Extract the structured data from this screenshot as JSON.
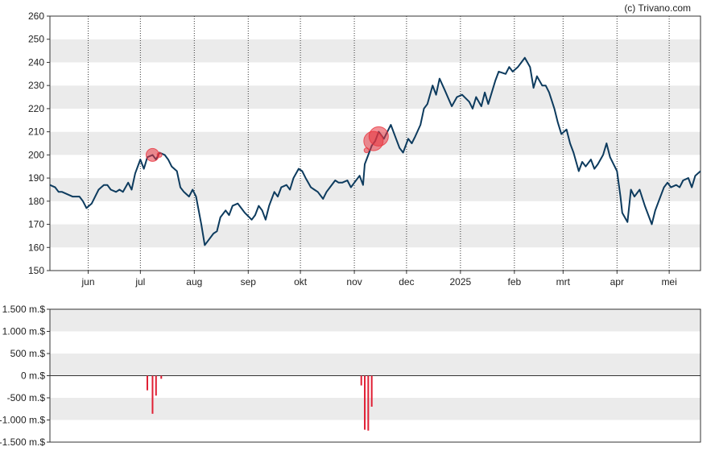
{
  "credit": "(c) Trivano.com",
  "chart_data": [
    {
      "type": "line",
      "name": "price",
      "ylim": [
        150,
        260
      ],
      "y_ticks": [
        150,
        160,
        170,
        180,
        190,
        200,
        210,
        220,
        230,
        240,
        250,
        260
      ],
      "y_tick_labels": [
        "150",
        "160",
        "170",
        "180",
        "190",
        "200",
        "210",
        "220",
        "230",
        "240",
        "250",
        "260"
      ],
      "x_domain": [
        "2024-05-10",
        "2025-05-19"
      ],
      "month_labels": [
        {
          "label": "jun",
          "date": "2024-06-01"
        },
        {
          "label": "jul",
          "date": "2024-07-01"
        },
        {
          "label": "aug",
          "date": "2024-08-01"
        },
        {
          "label": "sep",
          "date": "2024-09-01"
        },
        {
          "label": "okt",
          "date": "2024-10-01"
        },
        {
          "label": "nov",
          "date": "2024-11-01"
        },
        {
          "label": "dec",
          "date": "2024-12-01"
        },
        {
          "label": "2025",
          "date": "2025-01-01"
        },
        {
          "label": "feb",
          "date": "2025-02-01"
        },
        {
          "label": "mrt",
          "date": "2025-03-01"
        },
        {
          "label": "apr",
          "date": "2025-04-01"
        },
        {
          "label": "mei",
          "date": "2025-05-01"
        }
      ],
      "grid_dotted_vertical": true,
      "band_colors": [
        "#ebebeb",
        "#ffffff"
      ],
      "line_color": "#0d3b5e",
      "series": [
        {
          "values": [
            [
              "2024-05-10",
              187
            ],
            [
              "2024-05-13",
              186
            ],
            [
              "2024-05-15",
              184
            ],
            [
              "2024-05-17",
              184
            ],
            [
              "2024-05-20",
              183
            ],
            [
              "2024-05-23",
              182
            ],
            [
              "2024-05-27",
              182
            ],
            [
              "2024-05-29",
              180
            ],
            [
              "2024-05-31",
              177
            ],
            [
              "2024-06-03",
              179
            ],
            [
              "2024-06-05",
              182
            ],
            [
              "2024-06-07",
              185
            ],
            [
              "2024-06-10",
              187
            ],
            [
              "2024-06-12",
              187
            ],
            [
              "2024-06-14",
              185
            ],
            [
              "2024-06-17",
              184
            ],
            [
              "2024-06-19",
              185
            ],
            [
              "2024-06-21",
              184
            ],
            [
              "2024-06-24",
              188
            ],
            [
              "2024-06-26",
              185
            ],
            [
              "2024-06-28",
              192
            ],
            [
              "2024-07-01",
              198
            ],
            [
              "2024-07-03",
              194
            ],
            [
              "2024-07-05",
              199
            ],
            [
              "2024-07-08",
              200
            ],
            [
              "2024-07-10",
              198
            ],
            [
              "2024-07-12",
              201
            ],
            [
              "2024-07-15",
              200
            ],
            [
              "2024-07-17",
              198
            ],
            [
              "2024-07-19",
              195
            ],
            [
              "2024-07-22",
              193
            ],
            [
              "2024-07-24",
              186
            ],
            [
              "2024-07-26",
              184
            ],
            [
              "2024-07-29",
              182
            ],
            [
              "2024-07-31",
              185
            ],
            [
              "2024-08-02",
              182
            ],
            [
              "2024-08-05",
              170
            ],
            [
              "2024-08-07",
              161
            ],
            [
              "2024-08-09",
              163
            ],
            [
              "2024-08-12",
              166
            ],
            [
              "2024-08-14",
              167
            ],
            [
              "2024-08-16",
              173
            ],
            [
              "2024-08-19",
              176
            ],
            [
              "2024-08-21",
              174
            ],
            [
              "2024-08-23",
              178
            ],
            [
              "2024-08-26",
              179
            ],
            [
              "2024-08-28",
              177
            ],
            [
              "2024-08-30",
              175
            ],
            [
              "2024-09-03",
              172
            ],
            [
              "2024-09-05",
              174
            ],
            [
              "2024-09-07",
              178
            ],
            [
              "2024-09-09",
              176
            ],
            [
              "2024-09-11",
              172
            ],
            [
              "2024-09-13",
              178
            ],
            [
              "2024-09-16",
              184
            ],
            [
              "2024-09-18",
              182
            ],
            [
              "2024-09-20",
              186
            ],
            [
              "2024-09-23",
              187
            ],
            [
              "2024-09-25",
              185
            ],
            [
              "2024-09-27",
              190
            ],
            [
              "2024-09-30",
              194
            ],
            [
              "2024-10-02",
              193
            ],
            [
              "2024-10-04",
              190
            ],
            [
              "2024-10-07",
              186
            ],
            [
              "2024-10-09",
              185
            ],
            [
              "2024-10-11",
              184
            ],
            [
              "2024-10-14",
              181
            ],
            [
              "2024-10-16",
              184
            ],
            [
              "2024-10-18",
              186
            ],
            [
              "2024-10-21",
              189
            ],
            [
              "2024-10-23",
              188
            ],
            [
              "2024-10-25",
              188
            ],
            [
              "2024-10-28",
              189
            ],
            [
              "2024-10-30",
              186
            ],
            [
              "2024-11-01",
              188
            ],
            [
              "2024-11-04",
              191
            ],
            [
              "2024-11-06",
              187
            ],
            [
              "2024-11-07",
              196
            ],
            [
              "2024-11-08",
              198
            ],
            [
              "2024-11-11",
              204
            ],
            [
              "2024-11-13",
              206
            ],
            [
              "2024-11-15",
              210
            ],
            [
              "2024-11-18",
              207
            ],
            [
              "2024-11-20",
              210
            ],
            [
              "2024-11-22",
              213
            ],
            [
              "2024-11-25",
              207
            ],
            [
              "2024-11-27",
              203
            ],
            [
              "2024-11-29",
              201
            ],
            [
              "2024-12-02",
              207
            ],
            [
              "2024-12-04",
              205
            ],
            [
              "2024-12-06",
              208
            ],
            [
              "2024-12-09",
              213
            ],
            [
              "2024-12-11",
              220
            ],
            [
              "2024-12-13",
              222
            ],
            [
              "2024-12-16",
              230
            ],
            [
              "2024-12-18",
              226
            ],
            [
              "2024-12-20",
              233
            ],
            [
              "2024-12-23",
              228
            ],
            [
              "2024-12-27",
              221
            ],
            [
              "2024-12-30",
              225
            ],
            [
              "2025-01-02",
              226
            ],
            [
              "2025-01-06",
              223
            ],
            [
              "2025-01-08",
              220
            ],
            [
              "2025-01-10",
              225
            ],
            [
              "2025-01-13",
              221
            ],
            [
              "2025-01-15",
              227
            ],
            [
              "2025-01-17",
              222
            ],
            [
              "2025-01-21",
              232
            ],
            [
              "2025-01-23",
              236
            ],
            [
              "2025-01-27",
              235
            ],
            [
              "2025-01-29",
              238
            ],
            [
              "2025-01-31",
              236
            ],
            [
              "2025-02-03",
              238
            ],
            [
              "2025-02-05",
              240
            ],
            [
              "2025-02-07",
              242
            ],
            [
              "2025-02-10",
              238
            ],
            [
              "2025-02-12",
              229
            ],
            [
              "2025-02-14",
              234
            ],
            [
              "2025-02-17",
              230
            ],
            [
              "2025-02-19",
              230
            ],
            [
              "2025-02-21",
              227
            ],
            [
              "2025-02-24",
              220
            ],
            [
              "2025-02-26",
              214
            ],
            [
              "2025-02-28",
              209
            ],
            [
              "2025-03-03",
              211
            ],
            [
              "2025-03-05",
              205
            ],
            [
              "2025-03-07",
              201
            ],
            [
              "2025-03-10",
              193
            ],
            [
              "2025-03-12",
              197
            ],
            [
              "2025-03-14",
              195
            ],
            [
              "2025-03-17",
              198
            ],
            [
              "2025-03-19",
              194
            ],
            [
              "2025-03-21",
              196
            ],
            [
              "2025-03-24",
              200
            ],
            [
              "2025-03-26",
              205
            ],
            [
              "2025-03-28",
              199
            ],
            [
              "2025-04-01",
              193
            ],
            [
              "2025-04-03",
              182
            ],
            [
              "2025-04-04",
              175
            ],
            [
              "2025-04-07",
              171
            ],
            [
              "2025-04-09",
              185
            ],
            [
              "2025-04-11",
              182
            ],
            [
              "2025-04-14",
              185
            ],
            [
              "2025-04-17",
              178
            ],
            [
              "2025-04-21",
              170
            ],
            [
              "2025-04-23",
              176
            ],
            [
              "2025-04-25",
              180
            ],
            [
              "2025-04-28",
              186
            ],
            [
              "2025-04-30",
              188
            ],
            [
              "2025-05-02",
              186
            ],
            [
              "2025-05-05",
              187
            ],
            [
              "2025-05-07",
              186
            ],
            [
              "2025-05-09",
              189
            ],
            [
              "2025-05-12",
              190
            ],
            [
              "2025-05-14",
              186
            ],
            [
              "2025-05-16",
              191
            ],
            [
              "2025-05-19",
              193
            ]
          ]
        }
      ],
      "markers": [
        {
          "date": "2024-07-08",
          "value": 200,
          "size": "medium"
        },
        {
          "date": "2024-07-12",
          "value": 200,
          "size": "small"
        },
        {
          "date": "2024-11-12",
          "value": 206,
          "size": "large"
        },
        {
          "date": "2024-11-15",
          "value": 208,
          "size": "large"
        },
        {
          "date": "2024-11-08",
          "value": 202,
          "size": "small"
        }
      ],
      "marker_color": "#e8343f"
    },
    {
      "type": "bar",
      "name": "volume",
      "ylim": [
        -1500,
        1500
      ],
      "y_ticks": [
        -1500,
        -1000,
        -500,
        0,
        500,
        1000,
        1500
      ],
      "y_tick_labels": [
        "-1.500 m.$",
        "-1.000 m.$",
        "-500 m.$",
        "0 m.$",
        "500 m.$",
        "1.000 m.$",
        "1.500 m.$"
      ],
      "bar_color": "#e01f34",
      "values": [
        [
          "2024-07-05",
          -330
        ],
        [
          "2024-07-08",
          -860
        ],
        [
          "2024-07-10",
          -450
        ],
        [
          "2024-07-13",
          -70
        ],
        [
          "2024-11-05",
          -220
        ],
        [
          "2024-11-07",
          -1220
        ],
        [
          "2024-11-09",
          -1240
        ],
        [
          "2024-11-11",
          -700
        ]
      ]
    }
  ]
}
